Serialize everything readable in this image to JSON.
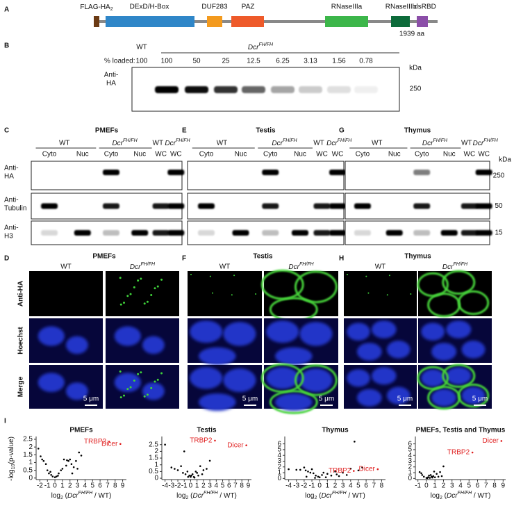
{
  "letters": [
    "A",
    "B",
    "C",
    "D",
    "E",
    "F",
    "G",
    "H",
    "I"
  ],
  "genotype": {
    "wt": "WT",
    "dcr": "Dcr",
    "sup": "FH/FH"
  },
  "domains": {
    "flag": "FLAG-HA",
    "flag_sub": "2",
    "items": [
      "DExD/H-Box",
      "DUF283",
      "PAZ",
      "RNaseIIIa",
      "RNaseIIIb",
      "dsRBD"
    ],
    "length": "1939 aa"
  },
  "titration": {
    "loaded": "% loaded:",
    "amounts": [
      100,
      100,
      50,
      25,
      12.5,
      6.25,
      3.13,
      1.56,
      0.78
    ],
    "antibody": [
      "Anti-",
      "HA"
    ],
    "kda": "kDa",
    "marker": 250
  },
  "blots": {
    "tissues": [
      "PMEFs",
      "Testis",
      "Thymus"
    ],
    "lanes": [
      "Cyto",
      "Nuc",
      "Cyto",
      "Nuc",
      "WC",
      "WC"
    ],
    "antibodies": [
      [
        "Anti-",
        "HA"
      ],
      [
        "Anti-",
        "Tubulin"
      ],
      [
        "Anti-",
        "H3"
      ]
    ],
    "markers": [
      250,
      50,
      15
    ],
    "kda": "kDa"
  },
  "imaging": {
    "rows": [
      "Anti-HA",
      "Hoechst",
      "Merge"
    ],
    "scale": "5 μm"
  },
  "volcano": {
    "ylabel": {
      "a": "-log",
      "sub": "10",
      "b": "(p-value)"
    },
    "xlabel": {
      "a": "log",
      "sub": "2",
      "b": " (",
      "c": " / WT)"
    },
    "charts": [
      {
        "type": "scatter",
        "title": "PMEFs",
        "xlim": [
          -2.5,
          9.5
        ],
        "xticks": [
          -2,
          -1,
          0,
          1,
          2,
          3,
          4,
          5,
          6,
          7,
          8,
          9
        ],
        "ylim": [
          -0.1,
          2.5
        ],
        "yticks": [
          0,
          0.5,
          1,
          1.5,
          2,
          2.5
        ],
        "points": {
          "x": [
            -2.2,
            -1.9,
            -1.7,
            -1.5,
            -1.2,
            -1,
            -0.8,
            -0.5,
            -0.3,
            0,
            0.2,
            0.5,
            0.8,
            1,
            1.2,
            1.5,
            1.8,
            2,
            2.2,
            2.5,
            2.8,
            3,
            3.2,
            3.5,
            -0.6,
            0.4,
            1.6,
            2.3
          ],
          "y": [
            1.9,
            1.4,
            1.2,
            1.1,
            0.9,
            0.5,
            0.3,
            0.2,
            0.1,
            0.05,
            0.1,
            0.3,
            0.5,
            0.6,
            1.2,
            0.8,
            1.1,
            1.2,
            0.9,
            0.7,
            1.1,
            0.6,
            1.65,
            1.45,
            0.4,
            0.15,
            1.15,
            0.3
          ]
        },
        "highlights": [
          {
            "label": "TRBP2",
            "x": 7.2,
            "y": 2.35
          },
          {
            "label": "Dicer",
            "x": 8.7,
            "y": 2.2
          }
        ]
      },
      {
        "type": "scatter",
        "title": "Testis",
        "xlim": [
          -4.5,
          9.5
        ],
        "xticks": [
          -4,
          -3,
          -2,
          -1,
          0,
          1,
          2,
          3,
          4,
          5,
          6,
          7,
          8,
          9
        ],
        "ylim": [
          -0.1,
          2.9
        ],
        "yticks": [
          0,
          0.5,
          1,
          1.5,
          2,
          2.5
        ],
        "points": {
          "x": [
            -4,
            -3,
            -2.5,
            -2,
            -1.5,
            -1,
            -0.8,
            -0.5,
            -0.2,
            0,
            0.3,
            0.5,
            0.8,
            1,
            1.2,
            1.5,
            2,
            2.5,
            3,
            -1.2,
            0.6,
            1.8,
            -0.4,
            0.1
          ],
          "y": [
            2.5,
            0.8,
            0.7,
            0.6,
            0.9,
            2,
            0.3,
            0.5,
            0.2,
            0.1,
            0.3,
            0.1,
            0.5,
            0.4,
            0.2,
            0.9,
            0.6,
            0.7,
            1.3,
            0.4,
            0.05,
            0.3,
            0.1,
            0.2
          ]
        },
        "highlights": [
          {
            "label": "TRBP2",
            "x": 3.8,
            "y": 2.8
          },
          {
            "label": "Dicer",
            "x": 8.7,
            "y": 2.45
          }
        ]
      },
      {
        "type": "scatter",
        "title": "Thymus",
        "xlim": [
          -4.5,
          8.5
        ],
        "xticks": [
          -4,
          -3,
          -2,
          -1,
          0,
          1,
          2,
          3,
          4,
          5,
          6,
          7,
          8
        ],
        "ylim": [
          -0.2,
          6.8
        ],
        "yticks": [
          0,
          1,
          2,
          3,
          4,
          5,
          6
        ],
        "points": {
          "x": [
            -4,
            -3,
            -2.5,
            -2,
            -1.8,
            -1.5,
            -1.2,
            -1,
            -0.8,
            -0.5,
            -0.2,
            0,
            0.3,
            0.5,
            1,
            1.5,
            2,
            2.5,
            3,
            3.5,
            4,
            4.5,
            5,
            5.5,
            -1.7,
            -0.6,
            0.8,
            2.2
          ],
          "y": [
            1.6,
            1.5,
            1.5,
            1.9,
            1.4,
            1.2,
            1,
            1.6,
            0.9,
            0.5,
            0.3,
            0.2,
            0.6,
            1,
            0.8,
            0.5,
            1.2,
            0.4,
            1,
            0.6,
            1.7,
            6.4,
            1.4,
            1.9,
            0.3,
            0.1,
            0.2,
            0.7
          ]
        },
        "highlights": [
          {
            "label": "TRBP2",
            "x": 4.4,
            "y": 1.3
          },
          {
            "label": "Dicer",
            "x": 7.5,
            "y": 1.6
          }
        ]
      },
      {
        "type": "scatter",
        "title": "PMEFs, Testis and Thymus",
        "xlim": [
          -1.3,
          9.3
        ],
        "xticks": [
          -1,
          0,
          1,
          2,
          3,
          4,
          5,
          6,
          7,
          8,
          9
        ],
        "ylim": [
          -0.2,
          6.8
        ],
        "yticks": [
          0,
          1,
          2,
          3,
          4,
          5,
          6
        ],
        "points": {
          "x": [
            -0.8,
            -0.5,
            -0.3,
            0,
            0.2,
            0.4,
            0.6,
            0.8,
            1,
            1.2,
            1.4,
            1.6,
            2,
            -0.6,
            0.1,
            0.5,
            0.9,
            1.8,
            0.3,
            0.7
          ],
          "y": [
            1.1,
            0.6,
            0.3,
            0.1,
            0.2,
            0.1,
            0.3,
            0.4,
            0.2,
            0.8,
            0.3,
            1.1,
            2.1,
            0.9,
            0.05,
            0.6,
            1.2,
            0.4,
            0.5,
            0.15
          ]
        },
        "highlights": [
          {
            "label": "Dicer",
            "x": 8.8,
            "y": 6.5
          },
          {
            "label": "TRBP2",
            "x": 5.4,
            "y": 4.5
          }
        ]
      }
    ]
  }
}
